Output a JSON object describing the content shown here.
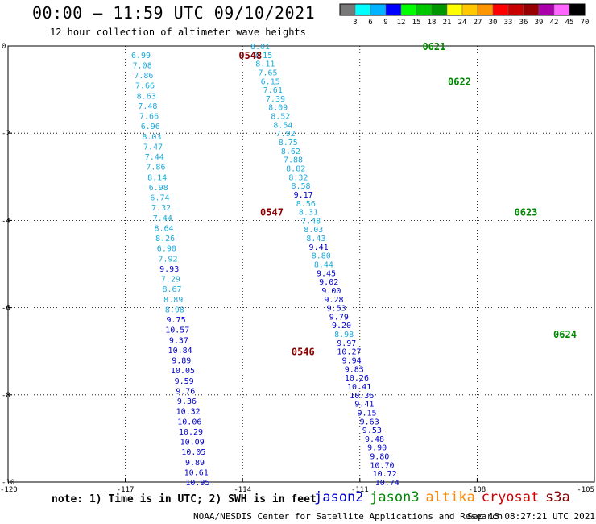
{
  "title": "00:00 – 11:59 UTC 09/10/2021",
  "subtitle": "12 hour collection of altimeter wave heights",
  "note": "note: 1) Time is in UTC; 2) SWH is in feet",
  "credit": "NOAA/NESDIS Center for Satellite Applications and Research",
  "datestamp": "Sep 13 08:27:21 UTC 2021",
  "satellites": [
    {
      "name": "jason2",
      "color": "#0000cc"
    },
    {
      "name": "jason3",
      "color": "#008800"
    },
    {
      "name": "altika",
      "color": "#ff8800"
    },
    {
      "name": "cryosat",
      "color": "#cc0000"
    },
    {
      "name": "s3a",
      "color": "#880000"
    }
  ],
  "chart_data": {
    "type": "scatter",
    "xlim": [
      -120,
      -105
    ],
    "ylim": [
      -10,
      0
    ],
    "x_ticks": [
      "-120",
      "-117",
      "-114",
      "-111",
      "-108",
      "-105"
    ],
    "y_ticks": [
      "0",
      "-2",
      "-4",
      "-6",
      "-8",
      "-10"
    ],
    "grid": true,
    "colorbar": {
      "labels": [
        "3",
        "6",
        "9",
        "12",
        "15",
        "18",
        "21",
        "24",
        "27",
        "30",
        "33",
        "36",
        "39",
        "42",
        "45",
        "70"
      ],
      "unit": "(ft)",
      "colors": [
        "#787878",
        "#00ffff",
        "#00b4ff",
        "#0000ff",
        "#00ff00",
        "#00c800",
        "#009600",
        "#ffff00",
        "#ffc800",
        "#ff9600",
        "#ff0000",
        "#c80000",
        "#960000",
        "#aa00aa",
        "#ff66ff",
        "#000000"
      ]
    },
    "time_labels": [
      {
        "text": "0548",
        "x": -114.1,
        "y": -0.2,
        "color": "#880000"
      },
      {
        "text": "0547",
        "x": -113.55,
        "y": -3.8,
        "color": "#880000"
      },
      {
        "text": "0546",
        "x": -112.75,
        "y": -7.0,
        "color": "#880000"
      },
      {
        "text": "0621",
        "x": -109.4,
        "y": 0.0,
        "color": "#008800"
      },
      {
        "text": "0622",
        "x": -108.75,
        "y": -0.8,
        "color": "#008800"
      },
      {
        "text": "0623",
        "x": -107.05,
        "y": -3.8,
        "color": "#008800"
      },
      {
        "text": "0624",
        "x": -106.05,
        "y": -6.6,
        "color": "#008800"
      },
      {
        "text": "0625",
        "x": -104.9,
        "y": -9.6,
        "color": "#008800"
      }
    ],
    "series": [
      {
        "name": "jason2",
        "x_start": -116.6,
        "y_start": -0.2,
        "x_end": -115.15,
        "y_end": -10.0,
        "values": [
          6.99,
          7.08,
          7.86,
          7.66,
          8.63,
          7.48,
          7.66,
          6.96,
          8.03,
          7.47,
          7.44,
          7.86,
          8.14,
          6.98,
          6.74,
          7.32,
          7.44,
          8.64,
          8.26,
          6.9,
          7.92,
          9.93,
          7.29,
          8.67,
          8.89,
          8.98,
          9.75,
          10.57,
          9.37,
          10.84,
          9.89,
          10.05,
          9.59,
          9.76,
          9.36,
          10.32,
          10.06,
          10.29,
          10.09,
          10.05,
          9.89,
          10.61,
          10.95
        ]
      },
      {
        "name": "jason3",
        "x_start": -113.55,
        "y_start": 0.0,
        "x_end": -110.3,
        "y_end": -10.0,
        "values": [
          8.01,
          8.15,
          8.11,
          7.65,
          6.15,
          7.61,
          7.39,
          8.09,
          8.52,
          8.54,
          7.92,
          8.75,
          8.62,
          7.88,
          8.82,
          8.32,
          8.58,
          9.17,
          8.56,
          8.31,
          7.48,
          8.03,
          8.43,
          9.41,
          8.8,
          8.44,
          9.45,
          9.02,
          9.0,
          9.28,
          9.53,
          9.79,
          9.2,
          8.98,
          9.97,
          10.27,
          9.94,
          9.83,
          10.26,
          10.41,
          10.36,
          9.41,
          9.15,
          9.63,
          9.53,
          9.48,
          9.9,
          9.8,
          10.7,
          10.72,
          10.74
        ]
      }
    ]
  }
}
